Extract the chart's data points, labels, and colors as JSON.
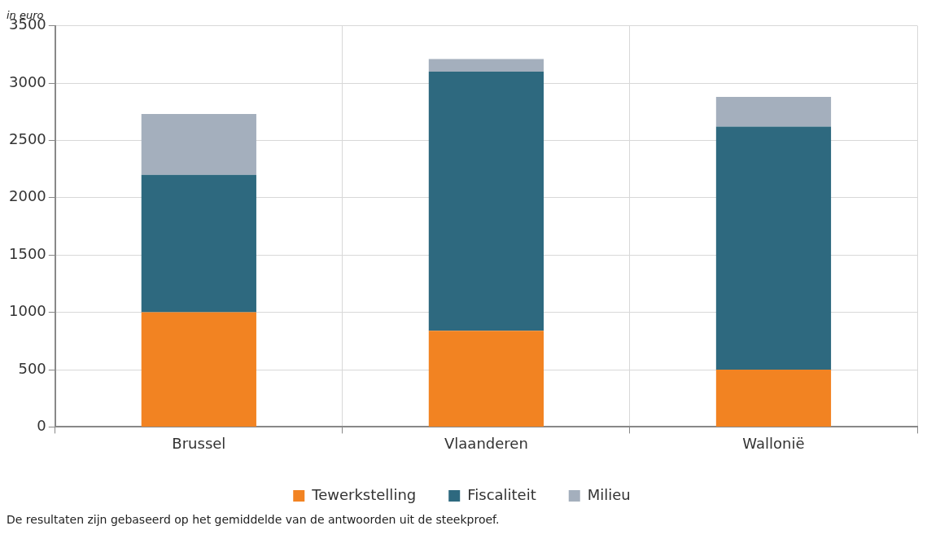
{
  "chart_data": {
    "type": "bar",
    "subtitle": "in euro",
    "categories": [
      "Brussel",
      "Vlaanderen",
      "Wallonië"
    ],
    "stacked": true,
    "series": [
      {
        "name": "Tewerkstelling",
        "color": "#f28322",
        "values": [
          1000,
          840,
          500
        ]
      },
      {
        "name": "Fiscaliteit",
        "color": "#2e697f",
        "values": [
          1200,
          2260,
          2120
        ]
      },
      {
        "name": "Milieu",
        "color": "#a4afbd",
        "values": [
          530,
          110,
          260
        ]
      }
    ],
    "ylim": [
      0,
      3500
    ],
    "yticks": [
      0,
      500,
      1000,
      1500,
      2000,
      2500,
      3000,
      3500
    ],
    "grid": true,
    "legend": "bottom",
    "annotations": [
      "De resultaten zijn gebaseerd op het gemiddelde van de antwoorden uit de steekproef."
    ]
  }
}
